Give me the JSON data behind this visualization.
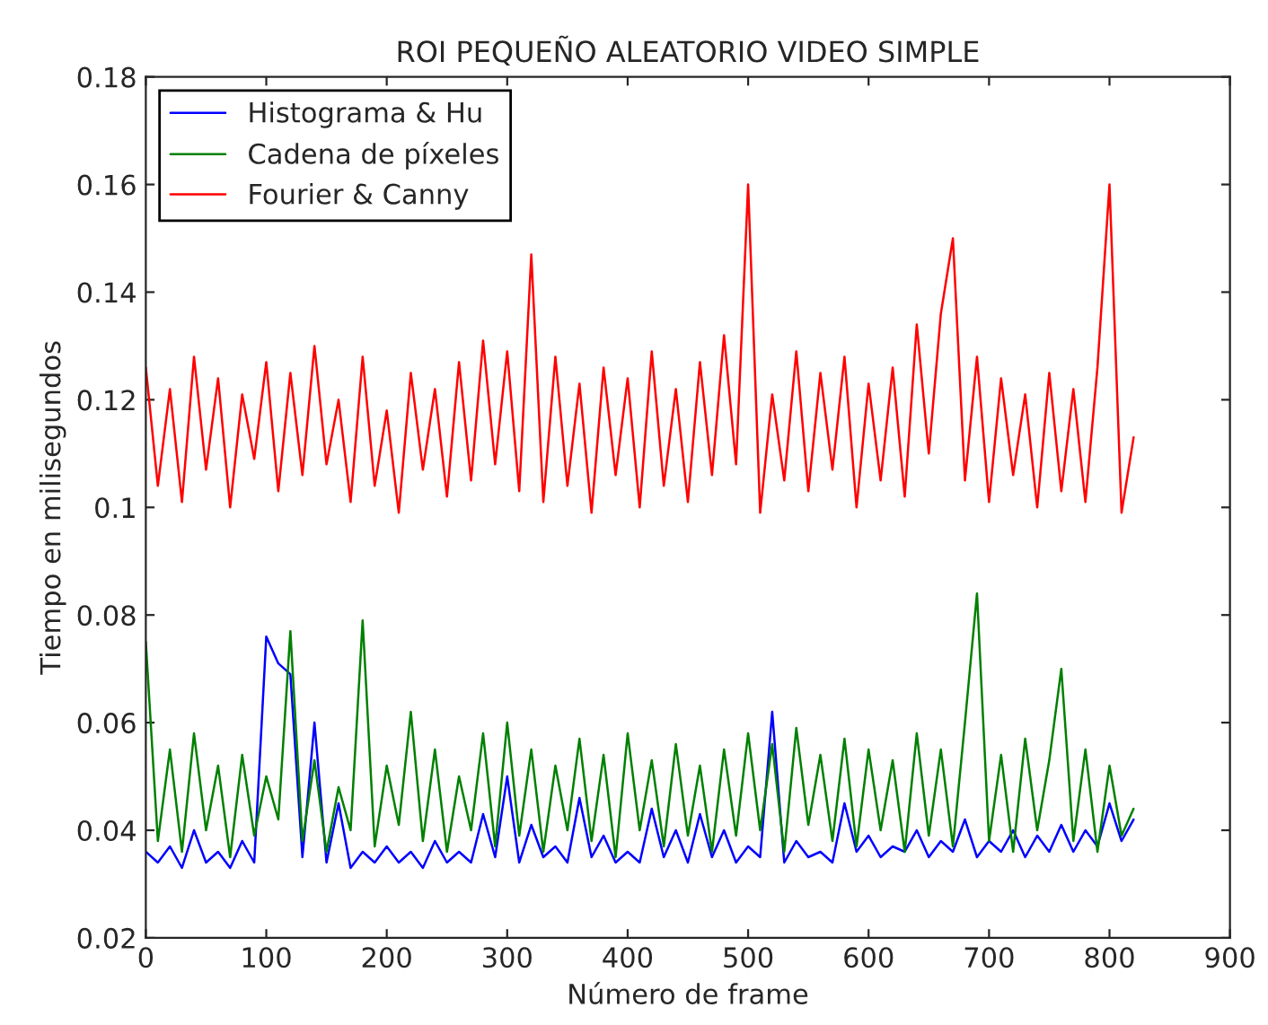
{
  "chart_data": {
    "type": "line",
    "title": "ROI PEQUEÑO ALEATORIO VIDEO SIMPLE",
    "xlabel": "Número de frame",
    "ylabel": "Tiempo en milisegundos",
    "x": [
      0,
      10,
      20,
      30,
      40,
      50,
      60,
      70,
      80,
      90,
      100,
      110,
      120,
      130,
      140,
      150,
      160,
      170,
      180,
      190,
      200,
      210,
      220,
      230,
      240,
      250,
      260,
      270,
      280,
      290,
      300,
      310,
      320,
      330,
      340,
      350,
      360,
      370,
      380,
      390,
      400,
      410,
      420,
      430,
      440,
      450,
      460,
      470,
      480,
      490,
      500,
      510,
      520,
      530,
      540,
      550,
      560,
      570,
      580,
      590,
      600,
      610,
      620,
      630,
      640,
      650,
      660,
      670,
      680,
      690,
      700,
      710,
      720,
      730,
      740,
      750,
      760,
      770,
      780,
      790,
      800,
      810,
      820
    ],
    "series": [
      {
        "name": "Histograma & Hu",
        "color": "#0000ff",
        "values": [
          0.036,
          0.034,
          0.037,
          0.033,
          0.04,
          0.034,
          0.036,
          0.033,
          0.038,
          0.034,
          0.076,
          0.071,
          0.069,
          0.035,
          0.06,
          0.034,
          0.045,
          0.033,
          0.036,
          0.034,
          0.037,
          0.034,
          0.036,
          0.033,
          0.038,
          0.034,
          0.036,
          0.034,
          0.043,
          0.035,
          0.05,
          0.034,
          0.041,
          0.035,
          0.037,
          0.034,
          0.046,
          0.035,
          0.039,
          0.034,
          0.036,
          0.034,
          0.044,
          0.035,
          0.04,
          0.034,
          0.043,
          0.035,
          0.04,
          0.034,
          0.037,
          0.035,
          0.062,
          0.034,
          0.038,
          0.035,
          0.036,
          0.034,
          0.045,
          0.036,
          0.039,
          0.035,
          0.037,
          0.036,
          0.04,
          0.035,
          0.038,
          0.036,
          0.042,
          0.035,
          0.038,
          0.036,
          0.04,
          0.035,
          0.039,
          0.036,
          0.041,
          0.036,
          0.04,
          0.037,
          0.045,
          0.038,
          0.042
        ]
      },
      {
        "name": "Cadena de píxeles",
        "color": "#008000",
        "values": [
          0.075,
          0.038,
          0.055,
          0.036,
          0.058,
          0.04,
          0.052,
          0.035,
          0.054,
          0.039,
          0.05,
          0.042,
          0.077,
          0.038,
          0.053,
          0.036,
          0.048,
          0.04,
          0.079,
          0.037,
          0.052,
          0.041,
          0.062,
          0.038,
          0.055,
          0.036,
          0.05,
          0.04,
          0.058,
          0.037,
          0.06,
          0.039,
          0.055,
          0.036,
          0.052,
          0.04,
          0.057,
          0.038,
          0.054,
          0.035,
          0.058,
          0.04,
          0.053,
          0.037,
          0.056,
          0.039,
          0.052,
          0.036,
          0.055,
          0.039,
          0.058,
          0.04,
          0.056,
          0.036,
          0.059,
          0.041,
          0.054,
          0.038,
          0.057,
          0.037,
          0.055,
          0.04,
          0.053,
          0.036,
          0.058,
          0.039,
          0.055,
          0.037,
          0.06,
          0.084,
          0.038,
          0.054,
          0.036,
          0.057,
          0.04,
          0.053,
          0.07,
          0.038,
          0.055,
          0.036,
          0.052,
          0.039,
          0.044
        ]
      },
      {
        "name": "Fourier & Canny",
        "color": "#ff0000",
        "values": [
          0.126,
          0.104,
          0.122,
          0.101,
          0.128,
          0.107,
          0.124,
          0.1,
          0.121,
          0.109,
          0.127,
          0.103,
          0.125,
          0.106,
          0.13,
          0.108,
          0.12,
          0.101,
          0.128,
          0.104,
          0.118,
          0.099,
          0.125,
          0.107,
          0.122,
          0.102,
          0.127,
          0.105,
          0.131,
          0.108,
          0.129,
          0.103,
          0.147,
          0.101,
          0.128,
          0.104,
          0.123,
          0.099,
          0.126,
          0.106,
          0.124,
          0.1,
          0.129,
          0.104,
          0.122,
          0.101,
          0.127,
          0.106,
          0.132,
          0.108,
          0.16,
          0.099,
          0.121,
          0.105,
          0.129,
          0.103,
          0.125,
          0.107,
          0.128,
          0.1,
          0.123,
          0.105,
          0.126,
          0.102,
          0.134,
          0.11,
          0.136,
          0.15,
          0.105,
          0.128,
          0.101,
          0.124,
          0.106,
          0.121,
          0.1,
          0.125,
          0.103,
          0.122,
          0.101,
          0.126,
          0.16,
          0.099,
          0.113
        ]
      }
    ],
    "xlim": [
      0,
      900
    ],
    "xticks": [
      0,
      100,
      200,
      300,
      400,
      500,
      600,
      700,
      800,
      900
    ],
    "ylim": [
      0.02,
      0.18
    ],
    "yticks": [
      0.02,
      0.04,
      0.06,
      0.08,
      0.1,
      0.12,
      0.14,
      0.16,
      0.18
    ],
    "grid": false,
    "legend": "top left",
    "marker": "none",
    "line_style": "solid"
  }
}
